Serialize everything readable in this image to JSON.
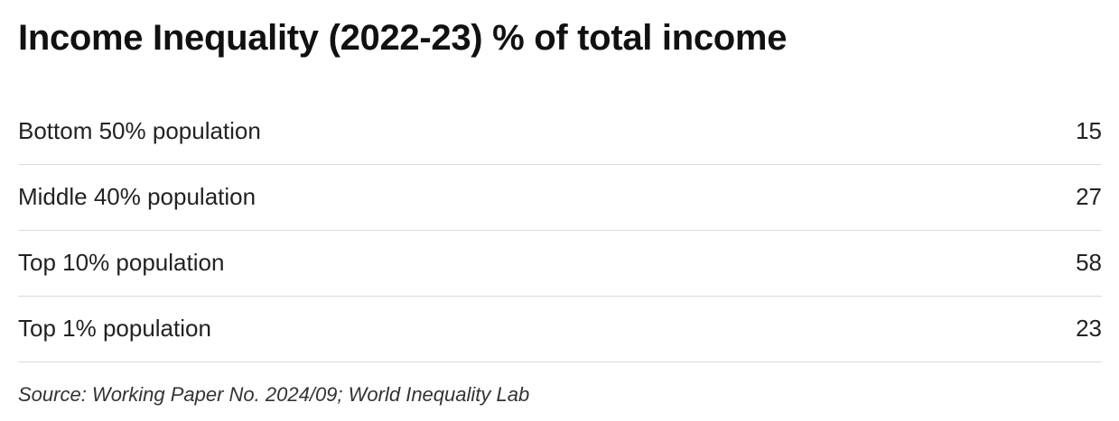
{
  "chart_data": {
    "type": "table",
    "title": "Income Inequality (2022-23) % of total income",
    "categories": [
      "Bottom 50% population",
      "Middle 40% population",
      "Top 10% population",
      "Top 1% population"
    ],
    "values": [
      15,
      27,
      58,
      23
    ],
    "rows": [
      {
        "label": "Bottom 50% population",
        "value": "15"
      },
      {
        "label": "Middle 40% population",
        "value": "27"
      },
      {
        "label": "Top 10% population",
        "value": "58"
      },
      {
        "label": "Top 1% population",
        "value": "23"
      }
    ],
    "source": "Source: Working Paper No. 2024/09; World Inequality Lab"
  }
}
